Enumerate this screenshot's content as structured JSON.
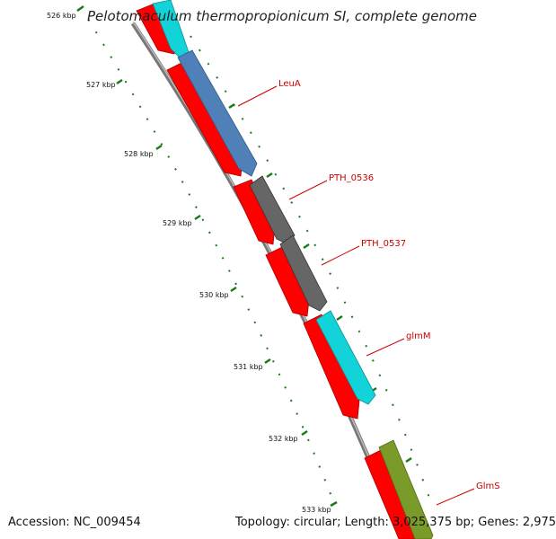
{
  "title": "Pelotomaculum thermopropionicum SI, complete genome",
  "footer": {
    "accession": "Accession: NC_009454",
    "summary": "Topology: circular; Length: 3,025,375 bp; Genes: 2,975"
  },
  "ticks": [
    "526 kbp",
    "527 kbp",
    "528 kbp",
    "529 kbp",
    "530 kbp",
    "531 kbp",
    "532 kbp",
    "533 kbp"
  ],
  "genes": [
    {
      "name": "LeuA",
      "color": "#4f81b8"
    },
    {
      "name": "PTH_0536",
      "color": "#666666"
    },
    {
      "name": "PTH_0537",
      "color": "#666666"
    },
    {
      "name": "glmM",
      "color": "#12d4d8"
    },
    {
      "name": "GlmS",
      "color": "#7a9a2a"
    }
  ],
  "colors": {
    "cds": "#ff0000",
    "backbone": "#888888",
    "tick": "#1a7a1a",
    "label": "#cc0000"
  }
}
